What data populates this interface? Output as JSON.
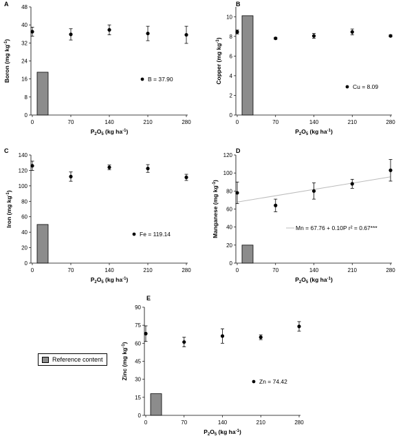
{
  "legend": {
    "label": "Reference content",
    "swatch_color": "#8c8c8c"
  },
  "chart_data": [
    {
      "panel": "A",
      "type": "scatter",
      "ylabel": "Boron (mg kg⁻¹)",
      "xlabel": "P₂O₅ (kg ha⁻¹)",
      "x": [
        0,
        70,
        140,
        210,
        280
      ],
      "y": [
        37,
        35.8,
        37.8,
        36.2,
        35.6
      ],
      "err": [
        2,
        2.5,
        2.2,
        3.2,
        3.8
      ],
      "reference": 19,
      "annotation": "B = 37.90",
      "ylim": [
        0,
        48
      ],
      "yticks": [
        0,
        8,
        16,
        24,
        32,
        40,
        48
      ],
      "xticks": [
        0,
        70,
        140,
        210,
        280
      ]
    },
    {
      "panel": "B",
      "type": "scatter",
      "ylabel": "Copper (mg kg⁻¹)",
      "xlabel": "P₂O₅ (kg ha⁻¹)",
      "x": [
        0,
        70,
        140,
        210,
        280
      ],
      "y": [
        8.45,
        7.8,
        8.05,
        8.45,
        8.05
      ],
      "err": [
        0.2,
        0.1,
        0.25,
        0.3,
        0.1
      ],
      "reference": 10.1,
      "annotation": "Cu = 8.09",
      "ylim": [
        0,
        11
      ],
      "yticks": [
        0,
        2,
        4,
        6,
        8,
        10
      ],
      "xticks": [
        0,
        70,
        140,
        210,
        280
      ]
    },
    {
      "panel": "C",
      "type": "scatter",
      "ylabel": "Iron (mg kg⁻¹)",
      "xlabel": "P₂O₅ (kg ha⁻¹)",
      "x": [
        0,
        70,
        140,
        210,
        280
      ],
      "y": [
        126,
        112,
        124,
        122.5,
        111
      ],
      "err": [
        6,
        6,
        3,
        5,
        4
      ],
      "reference": 50,
      "annotation": "Fe = 119.14",
      "ylim": [
        0,
        140
      ],
      "yticks": [
        0,
        20,
        40,
        60,
        80,
        100,
        120,
        140
      ],
      "xticks": [
        0,
        70,
        140,
        210,
        280
      ]
    },
    {
      "panel": "D",
      "type": "scatter",
      "ylabel": "Manganese (mg kg⁻¹)",
      "xlabel": "P₂O₅ (kg ha⁻¹)",
      "x": [
        0,
        70,
        140,
        210,
        280
      ],
      "y": [
        78,
        64,
        80,
        88,
        103
      ],
      "err": [
        12,
        7,
        9,
        5,
        12
      ],
      "reference": 20,
      "annotation": "Mn = 67.76 + 0.10P r² = 0.67***",
      "fit": {
        "intercept": 67.76,
        "slope": 0.1
      },
      "ylim": [
        0,
        120
      ],
      "yticks": [
        0,
        20,
        40,
        60,
        80,
        100,
        120
      ],
      "xticks": [
        0,
        70,
        140,
        210,
        280
      ]
    },
    {
      "panel": "E",
      "type": "scatter",
      "ylabel": "Zinc (mg kg⁻¹)",
      "xlabel": "P₂O₅ (kg ha⁻¹)",
      "x": [
        0,
        70,
        140,
        210,
        280
      ],
      "y": [
        68,
        61,
        66,
        65,
        74
      ],
      "err": [
        6.5,
        4,
        6,
        2,
        4
      ],
      "reference": 18,
      "annotation": "Zn = 74.42",
      "ylim": [
        0,
        90
      ],
      "yticks": [
        0,
        15,
        30,
        45,
        60,
        75,
        90
      ],
      "xticks": [
        0,
        70,
        140,
        210,
        280
      ]
    }
  ]
}
